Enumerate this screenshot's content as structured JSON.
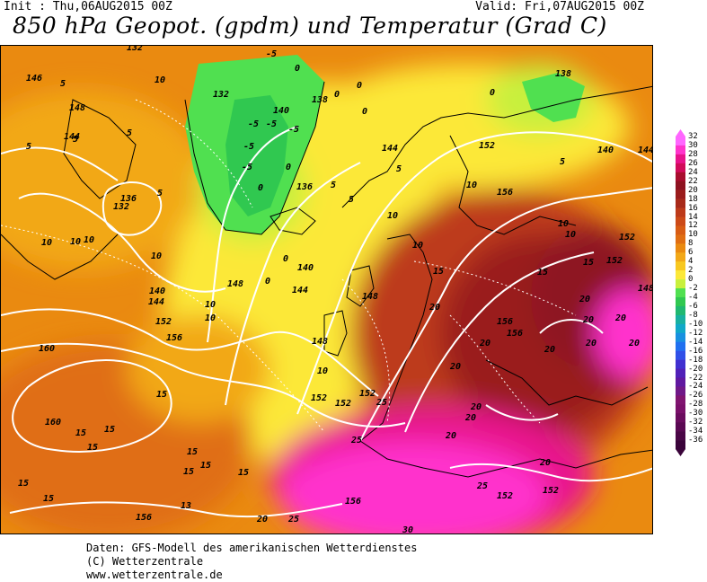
{
  "header": {
    "init": "Init : Thu,06AUG2015 00Z",
    "valid": "Valid: Fri,07AUG2015 00Z",
    "title": "850 hPa Geopot. (gpdm) und Temperatur (Grad C)"
  },
  "legend": {
    "values": [
      "32",
      "30",
      "28",
      "26",
      "24",
      "22",
      "20",
      "18",
      "16",
      "14",
      "12",
      "10",
      "8",
      "6",
      "4",
      "2",
      "0",
      "-2",
      "-4",
      "-6",
      "-8",
      "-10",
      "-12",
      "-14",
      "-16",
      "-18",
      "-20",
      "-22",
      "-24",
      "-26",
      "-28",
      "-30",
      "-32",
      "-34",
      "-36"
    ],
    "colors": [
      "#ff66ff",
      "#ff33cc",
      "#e8128c",
      "#d10a5a",
      "#a80d2e",
      "#8e1220",
      "#9a1c1c",
      "#a82a1a",
      "#bd3a1a",
      "#cc4a18",
      "#d85c14",
      "#e06e12",
      "#ea8a10",
      "#f2a818",
      "#f8c820",
      "#fce838",
      "#c8f03c",
      "#50e050",
      "#30c850",
      "#20b870",
      "#18b0a0",
      "#10a8c8",
      "#1890e0",
      "#2070f0",
      "#3050e8",
      "#4030d0",
      "#5020b8",
      "#6018a0",
      "#701888",
      "#801470",
      "#7a106a",
      "#6a0c5e",
      "#5a0852",
      "#4a0646",
      "#3a043a"
    ],
    "arrow_top_color": "#ff66ff",
    "arrow_bottom_color": "#3a043a"
  },
  "footer": {
    "line1": "Daten: GFS-Modell des amerikanischen Wetterdienstes",
    "line2": "(C) Wetterzentrale",
    "line3": "www.wetterzentrale.de"
  },
  "map": {
    "geopot_labels": [
      "132",
      "148",
      "136",
      "132",
      "140",
      "144",
      "148",
      "152",
      "156",
      "160",
      "136",
      "140",
      "144",
      "148",
      "152",
      "156",
      "160",
      "136",
      "140",
      "144",
      "148",
      "152",
      "156",
      "152",
      "152",
      "144",
      "148",
      "156",
      "152",
      "152",
      "156",
      "156",
      "148",
      "152",
      "152",
      "152",
      "156",
      "160",
      "140",
      "144",
      "136",
      "140",
      "138",
      "132",
      "140",
      "136",
      "138"
    ],
    "temp_labels": [
      "-5",
      "-5",
      "-5",
      "-5",
      "-5",
      "-5",
      "0",
      "0",
      "0",
      "0",
      "0",
      "0",
      "0",
      "0",
      "0",
      "5",
      "5",
      "5",
      "5",
      "5",
      "5",
      "5",
      "5",
      "5",
      "10",
      "10",
      "10",
      "10",
      "10",
      "10",
      "10",
      "10",
      "10",
      "10",
      "10",
      "10",
      "10",
      "15",
      "15",
      "15",
      "15",
      "15",
      "15",
      "15",
      "15",
      "15",
      "15",
      "15",
      "15",
      "15",
      "15",
      "20",
      "20",
      "20",
      "20",
      "20",
      "20",
      "20",
      "20",
      "20",
      "20",
      "20",
      "20",
      "20",
      "25",
      "25",
      "25",
      "25",
      "25",
      "30"
    ]
  }
}
